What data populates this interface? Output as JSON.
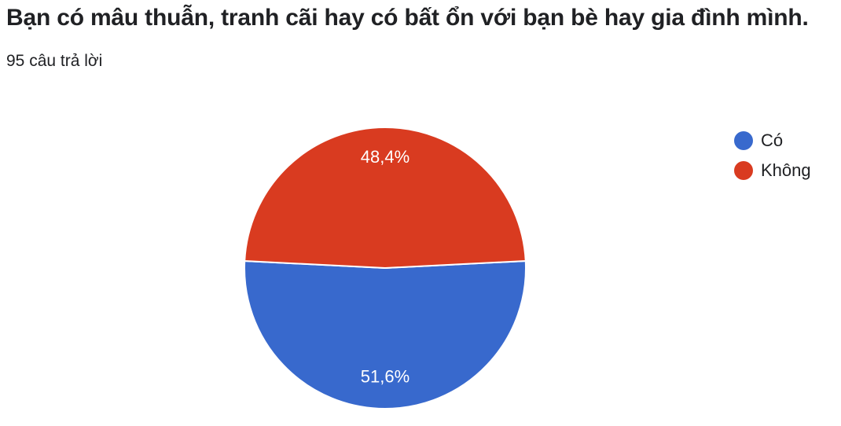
{
  "header": {
    "title": "Bạn có mâu thuẫn, tranh cãi hay có bất ổn với bạn bè hay gia đình mình.",
    "response_count": "95 câu trả lời"
  },
  "chart_data": {
    "type": "pie",
    "title": "Bạn có mâu thuẫn, tranh cãi hay có bất ổn với bạn bè hay gia đình mình.",
    "categories": [
      "Có",
      "Không"
    ],
    "values": [
      51.6,
      48.4
    ],
    "labels": [
      "51,6%",
      "48,4%"
    ],
    "colors": [
      "#3869cd",
      "#d93b20"
    ],
    "legend_position": "right"
  }
}
